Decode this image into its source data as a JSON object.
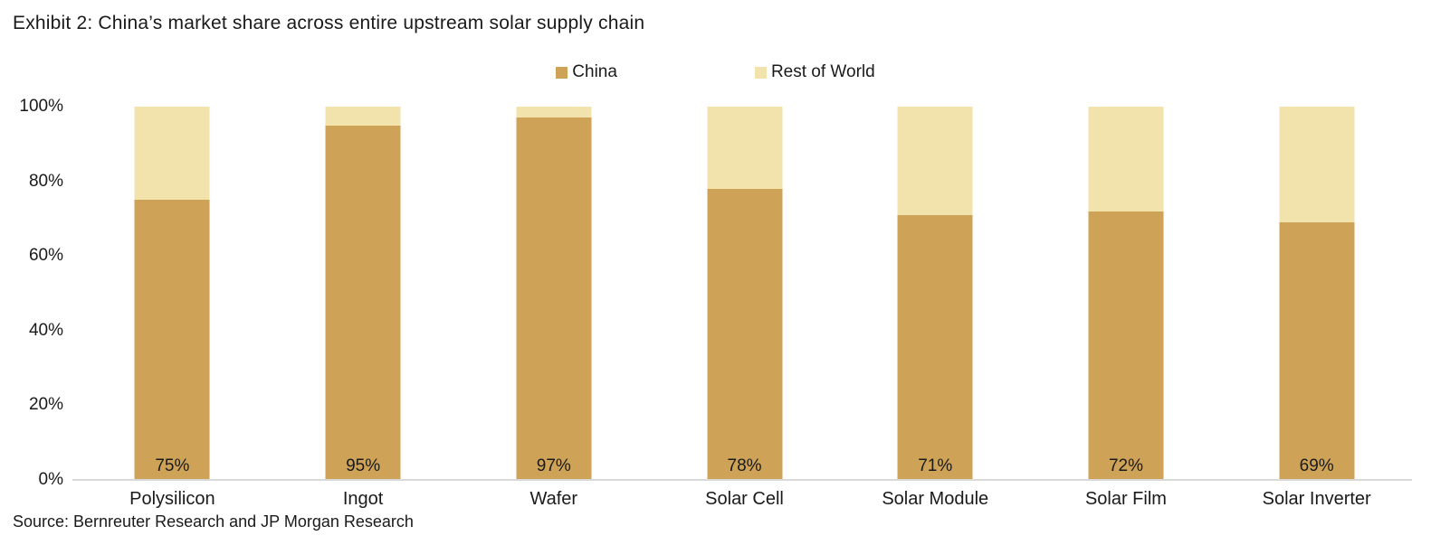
{
  "title": "Exhibit 2: China’s market share across entire upstream solar supply chain",
  "source": "Source: Bernreuter Research and JP Morgan Research",
  "colors": {
    "china": "#CEA358",
    "rest_of_world": "#F2E3AD",
    "axis_line": "#D9D9D9",
    "text": "#1A1A1A"
  },
  "legend": [
    {
      "label": "China",
      "series": "china"
    },
    {
      "label": "Rest of World",
      "series": "rest_of_world"
    }
  ],
  "chart_data": {
    "type": "bar",
    "stacked": true,
    "title": "Exhibit 2: China’s market share across entire upstream solar supply chain",
    "categories": [
      "Polysilicon",
      "Ingot",
      "Wafer",
      "Solar Cell",
      "Solar Module",
      "Solar Film",
      "Solar Inverter"
    ],
    "series": [
      {
        "name": "China",
        "color": "#CEA358",
        "values": [
          75,
          95,
          97,
          78,
          71,
          72,
          69
        ]
      },
      {
        "name": "Rest of World",
        "color": "#F2E3AD",
        "values": [
          25,
          5,
          3,
          22,
          29,
          28,
          31
        ]
      }
    ],
    "data_labels": [
      "75%",
      "95%",
      "97%",
      "78%",
      "71%",
      "72%",
      "69%"
    ],
    "xlabel": "",
    "ylabel": "",
    "y_ticks": [
      {
        "label": "100%",
        "value": 100
      },
      {
        "label": "80%",
        "value": 80
      },
      {
        "label": "60%",
        "value": 60
      },
      {
        "label": "40%",
        "value": 40
      },
      {
        "label": "20%",
        "value": 20
      },
      {
        "label": "0%",
        "value": 0
      }
    ],
    "ylim": [
      0,
      100
    ],
    "grid": false,
    "legend_position": "top-center"
  }
}
